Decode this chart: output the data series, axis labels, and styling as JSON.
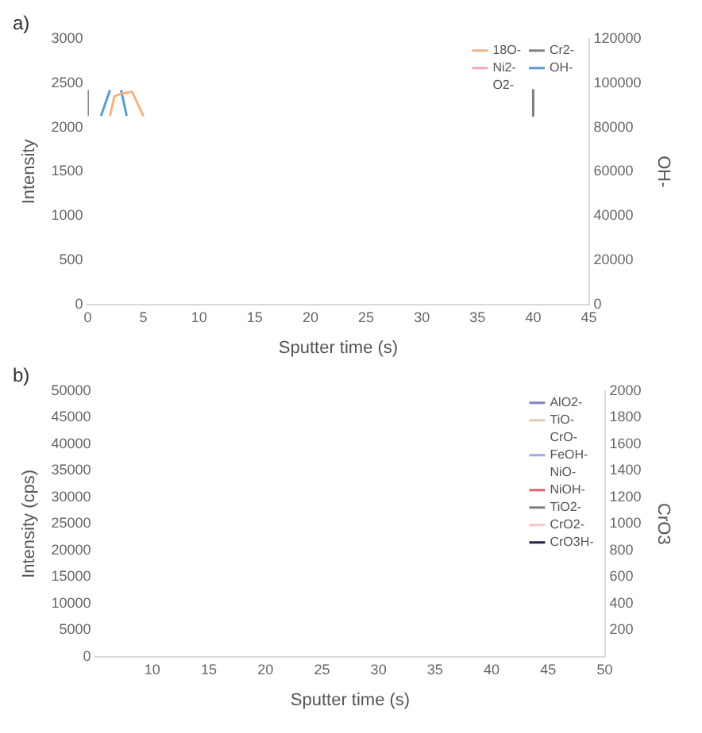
{
  "chart_data": [
    {
      "type": "line",
      "title": "a)",
      "xlabel": "Sputter time (s)",
      "ylabel": "Intensity",
      "y2label": "OH-",
      "xlim": [
        0,
        45
      ],
      "xticks": [
        0,
        5,
        10,
        15,
        20,
        25,
        30,
        35,
        40,
        45
      ],
      "ylim": [
        0,
        3000
      ],
      "yticks": [
        0,
        500,
        1000,
        1500,
        2000,
        2500,
        3000
      ],
      "y2lim": [
        0,
        120000
      ],
      "y2ticks": [
        0,
        20000,
        40000,
        60000,
        80000,
        100000,
        120000
      ],
      "grid": false,
      "legend": "top right",
      "marker": "none",
      "line_style": "solid",
      "series": [
        {
          "name": "18O-",
          "color": "#f4b183",
          "x": [
            2.0,
            2.4,
            3.0,
            4.0,
            5.0
          ],
          "values": [
            2130,
            2350,
            2380,
            2400,
            2130
          ]
        },
        {
          "name": "Cr2-",
          "color": "#7f7f7f",
          "x": [
            0,
            0,
            20,
            40,
            40
          ],
          "values": [
            2130,
            2420,
            null,
            2420,
            2130
          ]
        },
        {
          "name": "Ni2-",
          "color": "#f4a6b6"
        },
        {
          "name": "OH-",
          "color": "#5b9bd5",
          "axis": "y2",
          "x": [
            1.2,
            2.0,
            2.5,
            3.0,
            3.5
          ],
          "values": [
            85200,
            96800,
            null,
            96800,
            85200
          ]
        },
        {
          "name": "O2-"
        }
      ]
    },
    {
      "type": "line",
      "title": "b)",
      "xlabel": "Sputter time (s)",
      "ylabel": "Intensity (cps)",
      "y2label": "CrO3",
      "categories": [
        null,
        "10",
        "15",
        "20",
        "25",
        "30",
        "35",
        "40",
        "45",
        "50"
      ],
      "ylim": [
        0,
        50000
      ],
      "yticks": [
        0,
        5000,
        10000,
        15000,
        20000,
        25000,
        30000,
        35000,
        40000,
        45000,
        50000
      ],
      "y2lim": [
        0,
        2000
      ],
      "y2ticks": [
        200,
        400,
        600,
        800,
        1000,
        1200,
        1400,
        1600,
        1800,
        2000
      ],
      "grid": false,
      "legend": "top right",
      "marker": "none",
      "line_style": "solid",
      "series": [
        {
          "name": "AlO2-",
          "color": "#7f7fbf",
          "values": [
            null,
            null,
            null,
            null,
            null,
            null,
            null,
            null,
            null,
            null
          ]
        },
        {
          "name": "TiO-",
          "color": "#d9ccb0",
          "values": [
            null,
            null,
            null,
            null,
            null,
            null,
            null,
            null,
            null,
            null
          ]
        },
        {
          "name": "CrO-",
          "values": [
            null,
            null,
            null,
            null,
            null,
            null,
            null,
            null,
            null,
            null
          ]
        },
        {
          "name": "FeOH-",
          "color": "#9dabe0",
          "values": [
            null,
            null,
            null,
            null,
            null,
            null,
            null,
            null,
            null,
            null
          ]
        },
        {
          "name": "NiO-",
          "values": [
            null,
            null,
            null,
            null,
            null,
            null,
            null,
            null,
            null,
            null
          ]
        },
        {
          "name": "NiOH-",
          "color": "#e06070",
          "values": [
            null,
            null,
            null,
            null,
            null,
            null,
            null,
            null,
            null,
            null
          ]
        },
        {
          "name": "TiO2-",
          "color": "#7f7f7f",
          "values": [
            null,
            null,
            null,
            null,
            null,
            null,
            null,
            null,
            null,
            null
          ]
        },
        {
          "name": "CrO2-",
          "color": "#f4c6cc",
          "values": [
            null,
            null,
            null,
            null,
            null,
            null,
            null,
            null,
            null,
            null
          ]
        },
        {
          "name": "CrO3H-",
          "color": "#1f1f4f",
          "values": [
            null,
            null,
            null,
            null,
            null,
            null,
            null,
            null,
            null,
            null
          ]
        }
      ]
    }
  ]
}
